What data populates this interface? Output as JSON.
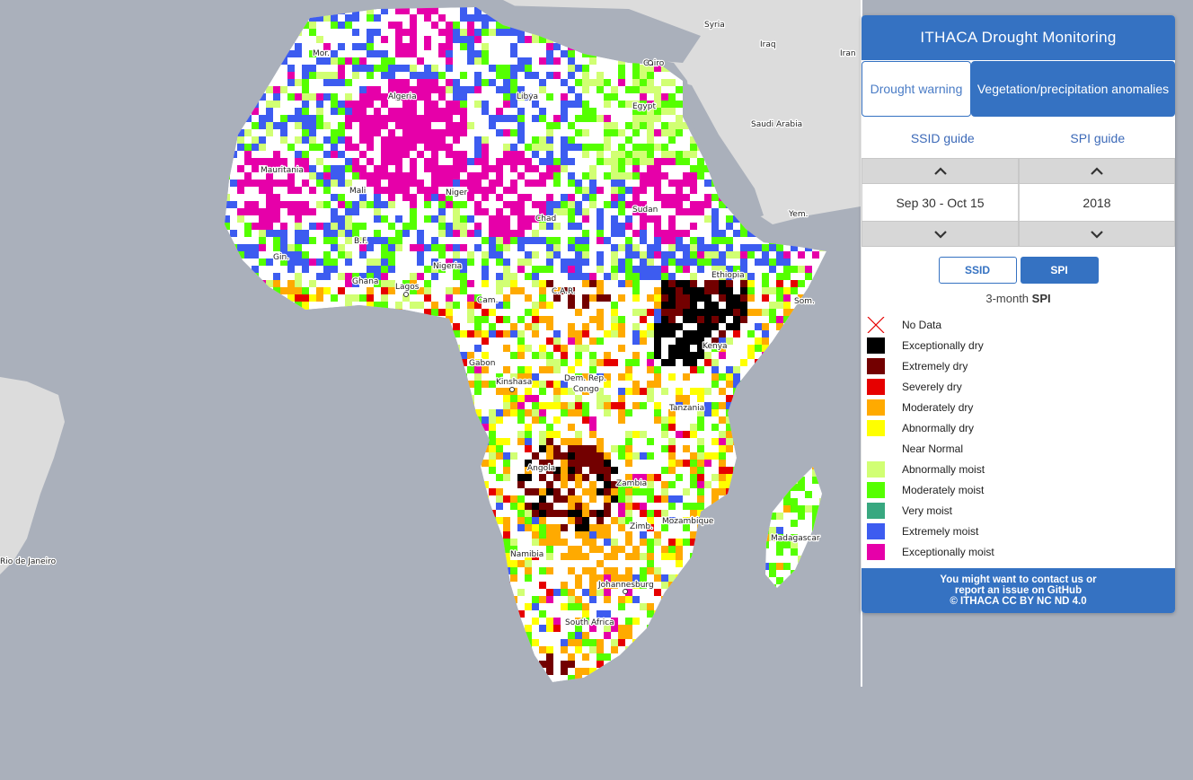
{
  "panel": {
    "title": "ITHACA Drought Monitoring",
    "tabs": [
      {
        "label": "Drought warning",
        "active": false
      },
      {
        "label": "Vegetation/precipitation anomalies",
        "active": true
      }
    ],
    "guides": [
      "SSID guide",
      "SPI guide"
    ],
    "period": "Sep 30 - Oct 15",
    "year": "2018",
    "indices": [
      {
        "label": "SSID",
        "active": false
      },
      {
        "label": "SPI",
        "active": true
      }
    ],
    "subtitle_prefix": "3-month",
    "subtitle_index": "SPI",
    "legend": [
      {
        "label": "No Data",
        "color": "none"
      },
      {
        "label": "Exceptionally dry",
        "color": "#000000"
      },
      {
        "label": "Extremely dry",
        "color": "#730000"
      },
      {
        "label": "Severely dry",
        "color": "#e60000"
      },
      {
        "label": "Moderately dry",
        "color": "#ffaa00"
      },
      {
        "label": "Abnormally dry",
        "color": "#ffff00"
      },
      {
        "label": "Near Normal",
        "color": "#ffffff"
      },
      {
        "label": "Abnormally moist",
        "color": "#d1ff73"
      },
      {
        "label": "Moderately moist",
        "color": "#55ff00"
      },
      {
        "label": "Very moist",
        "color": "#38a880"
      },
      {
        "label": "Extremely moist",
        "color": "#3d5cf0"
      },
      {
        "label": "Exceptionally moist",
        "color": "#e600a9"
      }
    ],
    "footer": [
      "You might want to contact us or",
      "report an issue on GitHub",
      "© ITHACA CC BY NC ND 4.0"
    ]
  },
  "map": {
    "labels": [
      "Syria",
      "Iraq",
      "Iran",
      "Saudi Arabia",
      "Yem.",
      "Cairo",
      "Egypt",
      "Libya",
      "Algeria",
      "Mor.",
      "Mauritania",
      "Mali",
      "Niger",
      "Chad",
      "Sudan",
      "B.F.",
      "Gin.",
      "Ghana",
      "Lagos",
      "Nigeria",
      "Cam.",
      "C.A.R.",
      "Ethiopia",
      "Som.",
      "Kenya",
      "Gabon",
      "Kinshasa",
      "Dem. Rep.",
      "Congo",
      "Tanzania",
      "Angola",
      "Zambia",
      "Zimb.",
      "Mozambique",
      "Namibia",
      "Madagascar",
      "Johannesburg",
      "South Africa",
      "Rio de Janeiro"
    ]
  }
}
